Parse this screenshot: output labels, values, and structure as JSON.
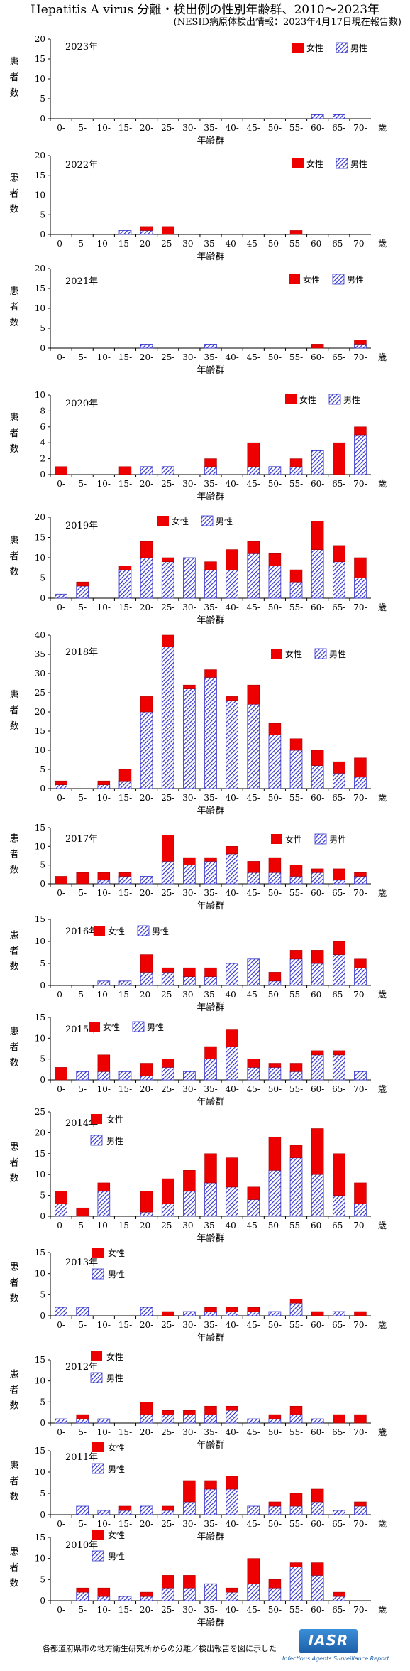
{
  "title": "Hepatitis A virus 分離・検出例の性別年齢群、2010～2023年",
  "subtitle": "(NESID病原体検出情報：2023年4月17日現在報告数)",
  "footer": "各都道府県市の地方衛生研究所からの分離／検出報告を図に示した",
  "logo": {
    "text": "IASR",
    "subtitle": "Infectious Agents Surveillance Report"
  },
  "colors": {
    "female": "#ee0000",
    "male": "#3333cc"
  },
  "chart_data": [
    {
      "type": "bar",
      "stacked": true,
      "title": "2023年",
      "ylabel": [
        "患",
        "者",
        "数"
      ],
      "xlabel": "年齢群",
      "xlabel_suffix": "歳",
      "categories": [
        "0-",
        "5-",
        "10-",
        "15-",
        "20-",
        "25-",
        "30-",
        "35-",
        "40-",
        "45-",
        "50-",
        "55-",
        "60-",
        "65-",
        "70-"
      ],
      "yticks": [
        0,
        5,
        10,
        15,
        20
      ],
      "ylim": [
        0,
        20
      ],
      "legend": "inline",
      "series": [
        {
          "name": "男性",
          "values": [
            0,
            0,
            0,
            0,
            0,
            0,
            0,
            0,
            0,
            0,
            0,
            0,
            1,
            1,
            0
          ]
        },
        {
          "name": "女性",
          "values": [
            0,
            0,
            0,
            0,
            0,
            0,
            0,
            0,
            0,
            0,
            0,
            0,
            0,
            0,
            0
          ]
        }
      ]
    },
    {
      "type": "bar",
      "stacked": true,
      "title": "2022年",
      "ylabel": [
        "患",
        "者",
        "数"
      ],
      "xlabel": "年齢群",
      "xlabel_suffix": "歳",
      "categories": [
        "0-",
        "5-",
        "10-",
        "15-",
        "20-",
        "25-",
        "30-",
        "35-",
        "40-",
        "45-",
        "50-",
        "55-",
        "60-",
        "65-",
        "70-"
      ],
      "yticks": [
        0,
        5,
        10,
        15,
        20
      ],
      "ylim": [
        0,
        20
      ],
      "legend": "inline",
      "series": [
        {
          "name": "男性",
          "values": [
            0,
            0,
            0,
            1,
            1,
            0,
            0,
            0,
            0,
            0,
            0,
            0,
            0,
            0,
            0
          ]
        },
        {
          "name": "女性",
          "values": [
            0,
            0,
            0,
            0,
            1,
            2,
            0,
            0,
            0,
            0,
            0,
            1,
            0,
            0,
            0
          ]
        }
      ]
    },
    {
      "type": "bar",
      "stacked": true,
      "title": "2021年",
      "ylabel": [
        "患",
        "者",
        "数"
      ],
      "xlabel": "年齢群",
      "xlabel_suffix": "歳",
      "categories": [
        "0-",
        "5-",
        "10-",
        "15-",
        "20-",
        "25-",
        "30-",
        "35-",
        "40-",
        "45-",
        "50-",
        "55-",
        "60-",
        "65-",
        "70-"
      ],
      "yticks": [
        0,
        5,
        10,
        15,
        20
      ],
      "ylim": [
        0,
        20
      ],
      "legend": "inline",
      "series": [
        {
          "name": "男性",
          "values": [
            0,
            0,
            0,
            0,
            1,
            0,
            0,
            1,
            0,
            0,
            0,
            0,
            0,
            0,
            1
          ]
        },
        {
          "name": "女性",
          "values": [
            0,
            0,
            0,
            0,
            0,
            0,
            0,
            0,
            0,
            0,
            0,
            0,
            1,
            0,
            1
          ]
        }
      ]
    },
    {
      "type": "bar",
      "stacked": true,
      "title": "2020年",
      "ylabel": [
        "患",
        "者",
        "数"
      ],
      "xlabel": "年齢群",
      "xlabel_suffix": "歳",
      "categories": [
        "0-",
        "5-",
        "10-",
        "15-",
        "20-",
        "25-",
        "30-",
        "35-",
        "40-",
        "45-",
        "50-",
        "55-",
        "60-",
        "65-",
        "70-"
      ],
      "yticks": [
        0,
        2,
        4,
        6,
        8,
        10
      ],
      "ylim": [
        0,
        10
      ],
      "legend": "inline",
      "series": [
        {
          "name": "男性",
          "values": [
            0,
            0,
            0,
            0,
            1,
            1,
            0,
            1,
            0,
            1,
            1,
            1,
            3,
            0,
            5
          ]
        },
        {
          "name": "女性",
          "values": [
            1,
            0,
            0,
            1,
            0,
            0,
            0,
            1,
            0,
            3,
            0,
            1,
            0,
            4,
            1
          ]
        }
      ]
    },
    {
      "type": "bar",
      "stacked": true,
      "title": "2019年",
      "ylabel": [
        "患",
        "者",
        "数"
      ],
      "xlabel": "年齢群",
      "xlabel_suffix": "歳",
      "categories": [
        "0-",
        "5-",
        "10-",
        "15-",
        "20-",
        "25-",
        "30-",
        "35-",
        "40-",
        "45-",
        "50-",
        "55-",
        "60-",
        "65-",
        "70-"
      ],
      "yticks": [
        0,
        5,
        10,
        15,
        20
      ],
      "ylim": [
        0,
        20
      ],
      "legend": "inline",
      "series": [
        {
          "name": "男性",
          "values": [
            1,
            3,
            0,
            7,
            10,
            9,
            10,
            7,
            7,
            11,
            8,
            4,
            12,
            9,
            5
          ]
        },
        {
          "name": "女性",
          "values": [
            0,
            1,
            0,
            1,
            4,
            1,
            0,
            2,
            5,
            3,
            3,
            3,
            7,
            4,
            5
          ]
        }
      ]
    },
    {
      "type": "bar",
      "stacked": true,
      "title": "2018年",
      "ylabel": [
        "患",
        "者",
        "数"
      ],
      "xlabel": "年齢群",
      "xlabel_suffix": "歳",
      "categories": [
        "0-",
        "5-",
        "10-",
        "15-",
        "20-",
        "25-",
        "30-",
        "35-",
        "40-",
        "45-",
        "50-",
        "55-",
        "60-",
        "65-",
        "70-"
      ],
      "yticks": [
        0,
        5,
        10,
        15,
        20,
        25,
        30,
        35,
        40
      ],
      "ylim": [
        0,
        40
      ],
      "legend": "inline",
      "series": [
        {
          "name": "男性",
          "values": [
            1,
            0,
            1,
            2,
            20,
            37,
            26,
            29,
            23,
            22,
            14,
            10,
            6,
            4,
            3
          ]
        },
        {
          "name": "女性",
          "values": [
            1,
            0,
            1,
            3,
            4,
            3,
            1,
            2,
            1,
            5,
            3,
            3,
            4,
            3,
            5
          ]
        }
      ]
    },
    {
      "type": "bar",
      "stacked": true,
      "title": "2017年",
      "ylabel": [
        "患",
        "者",
        "数"
      ],
      "xlabel": "年齢群",
      "xlabel_suffix": "歳",
      "categories": [
        "0-",
        "5-",
        "10-",
        "15-",
        "20-",
        "25-",
        "30-",
        "35-",
        "40-",
        "45-",
        "50-",
        "55-",
        "60-",
        "65-",
        "70-"
      ],
      "yticks": [
        0,
        5,
        10,
        15
      ],
      "ylim": [
        0,
        15
      ],
      "legend": "inline",
      "series": [
        {
          "name": "男性",
          "values": [
            0,
            0,
            1,
            2,
            2,
            6,
            5,
            6,
            8,
            3,
            3,
            2,
            3,
            1,
            2
          ]
        },
        {
          "name": "女性",
          "values": [
            2,
            3,
            2,
            1,
            0,
            7,
            2,
            1,
            2,
            3,
            4,
            3,
            1,
            3,
            1
          ]
        }
      ]
    },
    {
      "type": "bar",
      "stacked": true,
      "title": "2016年",
      "ylabel": [
        "患",
        "者",
        "数"
      ],
      "xlabel": "年齢群",
      "xlabel_suffix": "歳",
      "categories": [
        "0-",
        "5-",
        "10-",
        "15-",
        "20-",
        "25-",
        "30-",
        "35-",
        "40-",
        "45-",
        "50-",
        "55-",
        "60-",
        "65-",
        "70-"
      ],
      "yticks": [
        0,
        5,
        10,
        15
      ],
      "ylim": [
        0,
        15
      ],
      "legend": "inline",
      "series": [
        {
          "name": "男性",
          "values": [
            0,
            0,
            1,
            1,
            3,
            3,
            2,
            2,
            5,
            6,
            1,
            6,
            5,
            7,
            4
          ]
        },
        {
          "name": "女性",
          "values": [
            0,
            0,
            0,
            0,
            4,
            1,
            2,
            2,
            0,
            0,
            2,
            2,
            3,
            3,
            2
          ]
        }
      ]
    },
    {
      "type": "bar",
      "stacked": true,
      "title": "2015年",
      "ylabel": [
        "患",
        "者",
        "数"
      ],
      "xlabel": "年齢群",
      "xlabel_suffix": "歳",
      "categories": [
        "0-",
        "5-",
        "10-",
        "15-",
        "20-",
        "25-",
        "30-",
        "35-",
        "40-",
        "45-",
        "50-",
        "55-",
        "60-",
        "65-",
        "70-"
      ],
      "yticks": [
        0,
        5,
        10,
        15
      ],
      "ylim": [
        0,
        15
      ],
      "legend": "inline",
      "series": [
        {
          "name": "男性",
          "values": [
            0,
            2,
            2,
            2,
            1,
            3,
            2,
            5,
            8,
            3,
            3,
            2,
            6,
            6,
            2
          ]
        },
        {
          "name": "女性",
          "values": [
            3,
            0,
            4,
            0,
            3,
            2,
            0,
            3,
            4,
            2,
            1,
            2,
            1,
            1,
            0
          ]
        }
      ]
    },
    {
      "type": "bar",
      "stacked": true,
      "title": "2014年",
      "ylabel": [
        "患",
        "者",
        "数"
      ],
      "xlabel": "年齢群",
      "xlabel_suffix": "歳",
      "categories": [
        "0-",
        "5-",
        "10-",
        "15-",
        "20-",
        "25-",
        "30-",
        "35-",
        "40-",
        "45-",
        "50-",
        "55-",
        "60-",
        "65-",
        "70-"
      ],
      "yticks": [
        0,
        5,
        10,
        15,
        20,
        25
      ],
      "ylim": [
        0,
        25
      ],
      "legend": "stacked",
      "series": [
        {
          "name": "男性",
          "values": [
            3,
            0,
            6,
            0,
            1,
            3,
            6,
            8,
            7,
            4,
            11,
            14,
            10,
            5,
            3
          ]
        },
        {
          "name": "女性",
          "values": [
            3,
            2,
            2,
            0,
            5,
            6,
            5,
            7,
            7,
            3,
            8,
            3,
            11,
            10,
            5
          ]
        }
      ]
    },
    {
      "type": "bar",
      "stacked": true,
      "title": "2013年",
      "ylabel": [
        "患",
        "者",
        "数"
      ],
      "xlabel": "年齢群",
      "xlabel_suffix": "歳",
      "categories": [
        "0-",
        "5-",
        "10-",
        "15-",
        "20-",
        "25-",
        "30-",
        "35-",
        "40-",
        "45-",
        "50-",
        "55-",
        "60-",
        "65-",
        "70-"
      ],
      "yticks": [
        0,
        5,
        10,
        15
      ],
      "ylim": [
        0,
        15
      ],
      "legend": "stacked",
      "series": [
        {
          "name": "男性",
          "values": [
            2,
            2,
            0,
            0,
            2,
            0,
            1,
            1,
            1,
            1,
            1,
            3,
            0,
            1,
            0
          ]
        },
        {
          "name": "女性",
          "values": [
            0,
            0,
            0,
            0,
            0,
            1,
            0,
            1,
            1,
            1,
            0,
            1,
            1,
            0,
            1
          ]
        }
      ]
    },
    {
      "type": "bar",
      "stacked": true,
      "title": "2012年",
      "ylabel": [
        "患",
        "者",
        "数"
      ],
      "xlabel": "年齢群",
      "xlabel_suffix": "歳",
      "categories": [
        "0-",
        "5-",
        "10-",
        "15-",
        "20-",
        "25-",
        "30-",
        "35-",
        "40-",
        "45-",
        "50-",
        "55-",
        "60-",
        "65-",
        "70-"
      ],
      "yticks": [
        0,
        5,
        10,
        15
      ],
      "ylim": [
        0,
        15
      ],
      "legend": "stacked",
      "series": [
        {
          "name": "男性",
          "values": [
            1,
            1,
            1,
            0,
            2,
            2,
            2,
            2,
            3,
            1,
            1,
            2,
            1,
            0,
            0
          ]
        },
        {
          "name": "女性",
          "values": [
            0,
            1,
            0,
            0,
            3,
            1,
            1,
            2,
            1,
            0,
            1,
            2,
            0,
            2,
            2
          ]
        }
      ]
    },
    {
      "type": "bar",
      "stacked": true,
      "title": "2011年",
      "ylabel": [
        "患",
        "者",
        "数"
      ],
      "xlabel": "年齢群",
      "xlabel_suffix": "歳",
      "categories": [
        "0-",
        "5-",
        "10-",
        "15-",
        "20-",
        "25-",
        "30-",
        "35-",
        "40-",
        "45-",
        "50-",
        "55-",
        "60-",
        "65-",
        "70-"
      ],
      "yticks": [
        0,
        5,
        10,
        15
      ],
      "ylim": [
        0,
        15
      ],
      "legend": "stacked",
      "series": [
        {
          "name": "男性",
          "values": [
            0,
            2,
            1,
            1,
            2,
            1,
            3,
            6,
            6,
            2,
            2,
            2,
            3,
            1,
            2
          ]
        },
        {
          "name": "女性",
          "values": [
            0,
            0,
            0,
            1,
            0,
            1,
            5,
            2,
            3,
            0,
            1,
            3,
            3,
            0,
            1
          ]
        }
      ]
    },
    {
      "type": "bar",
      "stacked": true,
      "title": "2010年",
      "ylabel": [
        "患",
        "者",
        "数"
      ],
      "xlabel": "年齢群",
      "xlabel_suffix": "歳",
      "categories": [
        "0-",
        "5-",
        "10-",
        "15-",
        "20-",
        "25-",
        "30-",
        "35-",
        "40-",
        "45-",
        "50-",
        "55-",
        "60-",
        "65-",
        "70-"
      ],
      "yticks": [
        0,
        5,
        10,
        15
      ],
      "ylim": [
        0,
        15
      ],
      "legend": "stacked",
      "series": [
        {
          "name": "男性",
          "values": [
            0,
            2,
            1,
            1,
            1,
            3,
            3,
            4,
            2,
            4,
            3,
            8,
            6,
            1,
            0
          ]
        },
        {
          "name": "女性",
          "values": [
            0,
            1,
            2,
            0,
            1,
            3,
            3,
            0,
            1,
            6,
            2,
            1,
            3,
            1,
            0
          ]
        }
      ]
    }
  ]
}
